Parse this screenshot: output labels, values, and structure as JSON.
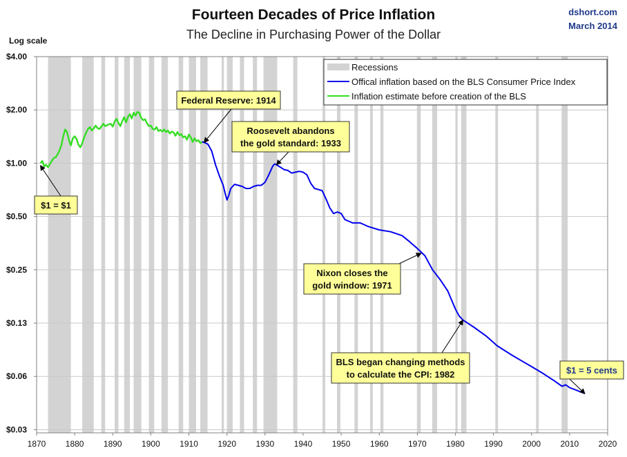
{
  "header": {
    "title": "Fourteen Decades of Price Inflation",
    "subtitle": "The Decline in Purchasing Power of the Dollar",
    "source": "dshort.com",
    "date": "March 2014",
    "scale_note": "Log scale"
  },
  "colors": {
    "recession": "#d3d3d3",
    "official": "#0000ee",
    "estimate": "#33dd22",
    "annotation_fill": "#ffff99",
    "grid": "#c8c8c8"
  },
  "chart_data": {
    "type": "line",
    "yscale": "log",
    "title": "Fourteen Decades of Price Inflation",
    "subtitle": "The Decline in Purchasing Power of the Dollar",
    "ylabel": "Log scale",
    "xlim": [
      1870,
      2020
    ],
    "ylim": [
      0.03,
      4.0
    ],
    "grid": true,
    "legend_position": "top-right",
    "x_ticks": [
      "1870",
      "1880",
      "1890",
      "1900",
      "1910",
      "1920",
      "1930",
      "1940",
      "1950",
      "1960",
      "1970",
      "1980",
      "1990",
      "2000",
      "2010",
      "2020"
    ],
    "y_ticks": [
      {
        "value": 4.0,
        "label": "$4.00"
      },
      {
        "value": 2.0,
        "label": "$2.00"
      },
      {
        "value": 1.0,
        "label": "$1.00"
      },
      {
        "value": 0.5,
        "label": "$0.50"
      },
      {
        "value": 0.25,
        "label": "$0.25"
      },
      {
        "value": 0.125,
        "label": "$0.13"
      },
      {
        "value": 0.0625,
        "label": "$0.06"
      },
      {
        "value": 0.03125,
        "label": "$0.03"
      }
    ],
    "legend": [
      {
        "label": "Recessions",
        "kind": "box",
        "color": "#d3d3d3"
      },
      {
        "label": "Offical inflation based on the BLS Consumer Price Index",
        "kind": "line",
        "color": "#0000ee"
      },
      {
        "label": "Inflation estimate before creation of the BLS",
        "kind": "line",
        "color": "#33dd22"
      }
    ],
    "recessions": [
      [
        1873.0,
        1879.0
      ],
      [
        1882.0,
        1885.0
      ],
      [
        1887.0,
        1888.0
      ],
      [
        1890.5,
        1891.5
      ],
      [
        1893.0,
        1894.5
      ],
      [
        1895.5,
        1897.5
      ],
      [
        1899.5,
        1900.9
      ],
      [
        1902.8,
        1904.5
      ],
      [
        1907.3,
        1908.5
      ],
      [
        1910.0,
        1911.9
      ],
      [
        1913.0,
        1914.9
      ],
      [
        1918.6,
        1919.2
      ],
      [
        1920.0,
        1921.5
      ],
      [
        1923.4,
        1924.5
      ],
      [
        1926.8,
        1927.9
      ],
      [
        1929.6,
        1933.2
      ],
      [
        1937.4,
        1938.5
      ],
      [
        1945.1,
        1945.8
      ],
      [
        1948.9,
        1949.8
      ],
      [
        1953.5,
        1954.4
      ],
      [
        1957.6,
        1958.3
      ],
      [
        1960.3,
        1961.1
      ],
      [
        1969.9,
        1970.9
      ],
      [
        1973.9,
        1975.2
      ],
      [
        1980.0,
        1980.6
      ],
      [
        1981.5,
        1982.9
      ],
      [
        1990.5,
        1991.2
      ],
      [
        2001.2,
        2001.9
      ],
      [
        2007.9,
        2009.5
      ]
    ],
    "series": [
      {
        "name": "Inflation estimate before creation of the BLS",
        "color": "#33dd22",
        "x": [
          1871.0,
          1871.5,
          1872.0,
          1872.5,
          1873.0,
          1873.5,
          1874.0,
          1874.5,
          1875.0,
          1875.5,
          1876.0,
          1876.5,
          1877.0,
          1877.5,
          1878.0,
          1878.5,
          1879.0,
          1879.5,
          1880.0,
          1880.5,
          1881.0,
          1881.5,
          1882.0,
          1882.5,
          1883.0,
          1883.5,
          1884.0,
          1884.5,
          1885.0,
          1885.5,
          1886.0,
          1886.5,
          1887.0,
          1887.5,
          1888.0,
          1888.5,
          1889.0,
          1889.5,
          1890.0,
          1890.5,
          1891.0,
          1891.5,
          1892.0,
          1892.5,
          1893.0,
          1893.5,
          1894.0,
          1894.5,
          1895.0,
          1895.5,
          1896.0,
          1896.5,
          1897.0,
          1897.5,
          1898.0,
          1898.5,
          1899.0,
          1899.5,
          1900.0,
          1900.5,
          1901.0,
          1901.5,
          1902.0,
          1902.5,
          1903.0,
          1903.5,
          1904.0,
          1904.5,
          1905.0,
          1905.5,
          1906.0,
          1906.5,
          1907.0,
          1907.5,
          1908.0,
          1908.5,
          1909.0,
          1909.5,
          1910.0,
          1910.5,
          1911.0,
          1911.5,
          1912.0,
          1912.5,
          1913.0,
          1913.5
        ],
        "values": [
          1.0,
          1.03,
          0.96,
          0.98,
          0.95,
          0.99,
          1.03,
          1.07,
          1.08,
          1.12,
          1.18,
          1.26,
          1.42,
          1.55,
          1.5,
          1.35,
          1.26,
          1.38,
          1.42,
          1.37,
          1.27,
          1.23,
          1.3,
          1.4,
          1.49,
          1.56,
          1.6,
          1.53,
          1.57,
          1.63,
          1.58,
          1.56,
          1.61,
          1.67,
          1.62,
          1.64,
          1.66,
          1.67,
          1.61,
          1.72,
          1.78,
          1.69,
          1.62,
          1.73,
          1.82,
          1.7,
          1.83,
          1.89,
          1.79,
          1.93,
          1.86,
          1.95,
          1.92,
          1.8,
          1.75,
          1.77,
          1.68,
          1.62,
          1.63,
          1.56,
          1.55,
          1.6,
          1.52,
          1.54,
          1.51,
          1.55,
          1.5,
          1.53,
          1.47,
          1.51,
          1.49,
          1.43,
          1.5,
          1.44,
          1.46,
          1.4,
          1.42,
          1.36,
          1.45,
          1.4,
          1.32,
          1.38,
          1.33,
          1.35,
          1.3,
          1.32
        ]
      },
      {
        "name": "Offical inflation based on the BLS Consumer Price Index",
        "color": "#0000ee",
        "x": [
          1913.5,
          1914.0,
          1915.0,
          1916.0,
          1917.0,
          1918.0,
          1919.0,
          1919.5,
          1920.0,
          1920.5,
          1921.0,
          1922.0,
          1923.0,
          1924.0,
          1925.0,
          1926.0,
          1927.0,
          1928.0,
          1929.0,
          1930.0,
          1931.0,
          1932.0,
          1932.5,
          1933.0,
          1934.0,
          1935.0,
          1936.0,
          1937.0,
          1938.0,
          1939.0,
          1940.0,
          1941.0,
          1942.0,
          1943.0,
          1944.0,
          1945.0,
          1946.0,
          1947.0,
          1948.0,
          1949.0,
          1950.0,
          1951.0,
          1952.0,
          1953.0,
          1955.0,
          1957.0,
          1960.0,
          1963.0,
          1966.0,
          1968.0,
          1970.0,
          1972.0,
          1974.0,
          1976.0,
          1978.0,
          1980.0,
          1981.0,
          1982.0,
          1983.0,
          1985.0,
          1988.0,
          1991.0,
          1995.0,
          2000.0,
          2003.0,
          2006.0,
          2008.0,
          2009.0,
          2010.0,
          2012.0,
          2014.0
        ],
        "values": [
          1.32,
          1.31,
          1.28,
          1.17,
          0.98,
          0.85,
          0.75,
          0.68,
          0.62,
          0.66,
          0.72,
          0.76,
          0.75,
          0.74,
          0.72,
          0.72,
          0.74,
          0.75,
          0.75,
          0.78,
          0.86,
          0.96,
          0.99,
          0.98,
          0.95,
          0.92,
          0.91,
          0.88,
          0.89,
          0.9,
          0.89,
          0.86,
          0.77,
          0.72,
          0.71,
          0.7,
          0.63,
          0.56,
          0.52,
          0.53,
          0.52,
          0.48,
          0.47,
          0.46,
          0.46,
          0.44,
          0.42,
          0.41,
          0.39,
          0.36,
          0.33,
          0.3,
          0.25,
          0.22,
          0.19,
          0.15,
          0.137,
          0.13,
          0.126,
          0.118,
          0.106,
          0.093,
          0.082,
          0.071,
          0.065,
          0.059,
          0.055,
          0.056,
          0.054,
          0.052,
          0.05
        ]
      }
    ],
    "annotations": [
      {
        "lines": [
          "Federal Reserve: 1914"
        ],
        "x": 1914.0,
        "y": 1.31
      },
      {
        "lines": [
          "Roosevelt abandons",
          "the gold standard: 1933"
        ],
        "x": 1933.0,
        "y": 0.98
      },
      {
        "lines": [
          "$1 = $1"
        ],
        "x": 1871.0,
        "y": 0.97
      },
      {
        "lines": [
          "Nixon closes the",
          "gold window: 1971"
        ],
        "x": 1971.0,
        "y": 0.31
      },
      {
        "lines": [
          "BLS began  changing methods",
          "to calculate the CPI: 1982"
        ],
        "x": 1982.0,
        "y": 0.13
      },
      {
        "lines": [
          "$1 = 5 cents"
        ],
        "x": 2014.0,
        "y": 0.05
      }
    ]
  }
}
